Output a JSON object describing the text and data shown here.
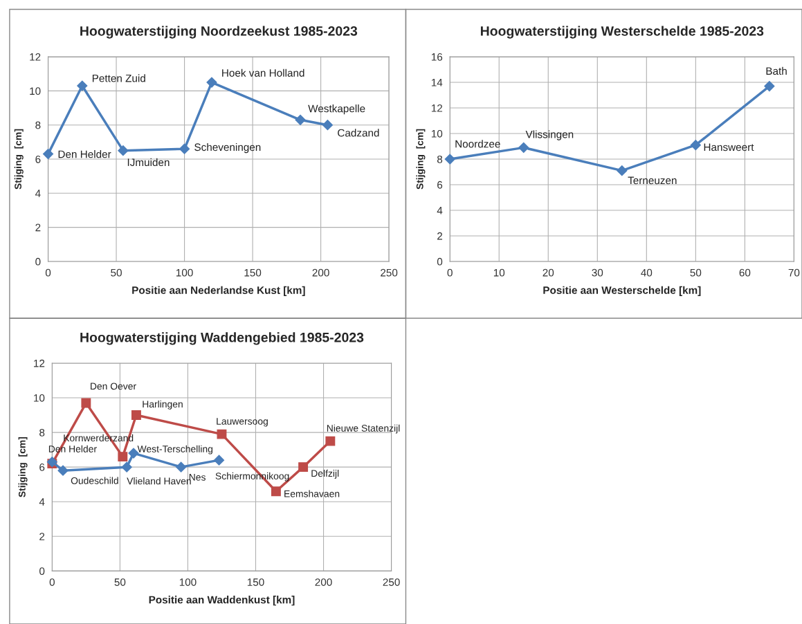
{
  "chart_data": [
    {
      "type": "line",
      "title": "Hoogwaterstijging Noordzeekust 1985-2023",
      "xlabel": "Positie aan Nederlandse Kust [km]",
      "ylabel": "Stijging  [cm]",
      "series": [
        {
          "color": "#4a7ebb",
          "marker": "diamond",
          "x": [
            0,
            25,
            55,
            100,
            120,
            185,
            205
          ],
          "values": [
            6.3,
            10.3,
            6.5,
            6.6,
            10.5,
            8.3,
            8.0
          ]
        }
      ],
      "annotations": [
        {
          "text": "Den Helder",
          "x": 0,
          "y": 6.3
        },
        {
          "text": "Petten Zuid",
          "x": 25,
          "y": 10.3
        },
        {
          "text": "IJmuiden",
          "x": 55,
          "y": 6.5
        },
        {
          "text": "Scheveningen",
          "x": 100,
          "y": 6.6
        },
        {
          "text": "Hoek van Holland",
          "x": 120,
          "y": 10.5
        },
        {
          "text": "Westkapelle",
          "x": 185,
          "y": 8.3
        },
        {
          "text": "Cadzand",
          "x": 205,
          "y": 8.0
        }
      ],
      "xlim": [
        0,
        250
      ],
      "xticks": [
        0,
        50,
        100,
        150,
        200,
        250
      ],
      "ylim": [
        0,
        12
      ],
      "yticks": [
        0,
        2,
        4,
        6,
        8,
        10,
        12
      ],
      "grid": true,
      "line_style": "solid"
    },
    {
      "type": "line",
      "title": "Hoogwaterstijging Westerschelde 1985-2023",
      "xlabel": "Positie aan Westerschelde [km]",
      "ylabel": "Stijging  [cm]",
      "series": [
        {
          "color": "#4a7ebb",
          "marker": "diamond",
          "x": [
            0,
            15,
            35,
            50,
            65
          ],
          "values": [
            8.0,
            8.9,
            7.1,
            9.1,
            13.7
          ]
        }
      ],
      "annotations": [
        {
          "text": "Noordzee",
          "x": 0,
          "y": 8.0
        },
        {
          "text": "Vlissingen",
          "x": 15,
          "y": 8.9
        },
        {
          "text": "Terneuzen",
          "x": 35,
          "y": 7.1
        },
        {
          "text": "Hansweert",
          "x": 50,
          "y": 9.1
        },
        {
          "text": "Bath",
          "x": 65,
          "y": 13.7
        }
      ],
      "xlim": [
        0,
        70
      ],
      "xticks": [
        0,
        10,
        20,
        30,
        40,
        50,
        60,
        70
      ],
      "ylim": [
        0,
        16
      ],
      "yticks": [
        0,
        2,
        4,
        6,
        8,
        10,
        12,
        14,
        16
      ],
      "grid": true,
      "line_style": "solid"
    },
    {
      "type": "line",
      "title": "Hoogwaterstijging Waddengebied 1985-2023",
      "xlabel": "Positie aan Waddenkust [km]",
      "ylabel": "Stijging  [cm]",
      "series": [
        {
          "color": "#be4b48",
          "marker": "square",
          "x": [
            0,
            25,
            52,
            62,
            125,
            165,
            185,
            205
          ],
          "values": [
            6.2,
            9.7,
            6.6,
            9.0,
            7.9,
            4.6,
            6.0,
            7.5
          ]
        },
        {
          "color": "#4a7ebb",
          "marker": "diamond",
          "x": [
            0,
            8,
            55,
            60,
            95,
            123
          ],
          "values": [
            6.3,
            5.8,
            6.0,
            6.8,
            6.0,
            6.4
          ]
        }
      ],
      "annotations": [
        {
          "text": "Den Helder",
          "x": 0,
          "y": 6.3
        },
        {
          "text": "Oudeschild",
          "x": 8,
          "y": 5.8
        },
        {
          "text": "Vlieland Haven",
          "x": 55,
          "y": 6.0
        },
        {
          "text": "West-Terschelling",
          "x": 60,
          "y": 6.8
        },
        {
          "text": "Nes",
          "x": 95,
          "y": 6.0
        },
        {
          "text": "Schiermonnikoog",
          "x": 123,
          "y": 6.4
        },
        {
          "text": "Den Oever",
          "x": 25,
          "y": 9.7
        },
        {
          "text": "Kornwerderzand",
          "x": 52,
          "y": 6.6
        },
        {
          "text": "Harlingen",
          "x": 62,
          "y": 9.0
        },
        {
          "text": "Lauwersoog",
          "x": 125,
          "y": 7.9
        },
        {
          "text": "Eemshavaen",
          "x": 165,
          "y": 4.6
        },
        {
          "text": "Delfzijl",
          "x": 185,
          "y": 6.0
        },
        {
          "text": "Nieuwe Statenzijl",
          "x": 205,
          "y": 7.5
        }
      ],
      "xlim": [
        0,
        250
      ],
      "xticks": [
        0,
        50,
        100,
        150,
        200,
        250
      ],
      "ylim": [
        0,
        12
      ],
      "yticks": [
        0,
        2,
        4,
        6,
        8,
        10,
        12
      ],
      "grid": true,
      "line_style": "solid"
    }
  ]
}
